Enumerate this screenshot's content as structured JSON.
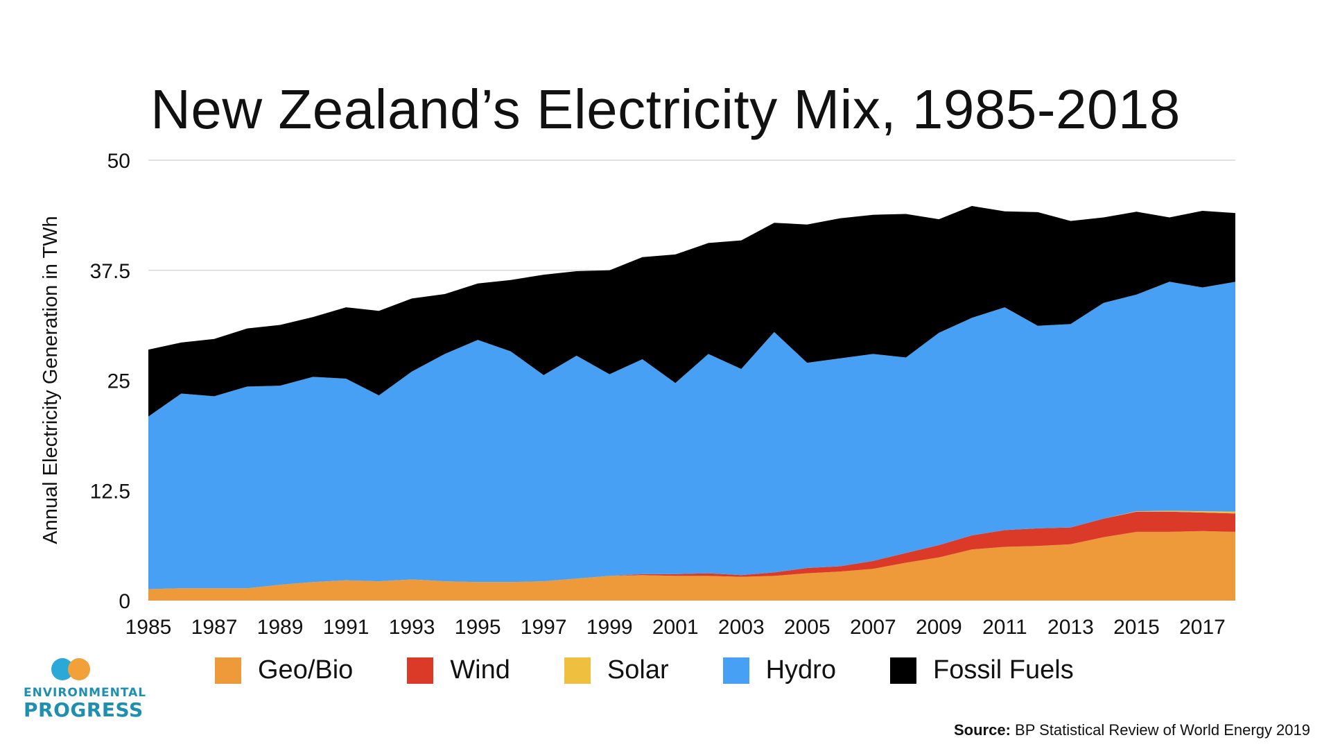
{
  "title": "New Zealand’s Electricity Mix, 1985-2018",
  "source": {
    "label": "Source:",
    "text": "BP Statistical Review of World Energy 2019"
  },
  "logo": {
    "line1": "ENVIRONMENTAL",
    "line2": "PROGRESS"
  },
  "chart_data": {
    "type": "area",
    "stacked": true,
    "ylabel": "Annual Electricity Generation in TWh",
    "ylim": [
      0,
      50
    ],
    "yticks": [
      "0",
      "12.5",
      "25",
      "37.5",
      "50"
    ],
    "ytick_values": [
      0,
      12.5,
      25,
      37.5,
      50
    ],
    "grid": true,
    "legend_position": "bottom",
    "x": [
      1985,
      1986,
      1987,
      1988,
      1989,
      1990,
      1991,
      1992,
      1993,
      1994,
      1995,
      1996,
      1997,
      1998,
      1999,
      2000,
      2001,
      2002,
      2003,
      2004,
      2005,
      2006,
      2007,
      2008,
      2009,
      2010,
      2011,
      2012,
      2013,
      2014,
      2015,
      2016,
      2017,
      2018
    ],
    "xticks": [
      "1985",
      "1987",
      "1989",
      "1991",
      "1993",
      "1995",
      "1997",
      "1999",
      "2001",
      "2003",
      "2005",
      "2007",
      "2009",
      "2011",
      "2013",
      "2015",
      "2017"
    ],
    "series": [
      {
        "name": "Geo/Bio",
        "color": "#ef9a3a",
        "values": [
          1.3,
          1.4,
          1.4,
          1.4,
          1.8,
          2.1,
          2.3,
          2.2,
          2.4,
          2.2,
          2.1,
          2.1,
          2.2,
          2.5,
          2.8,
          2.9,
          2.8,
          2.8,
          2.7,
          2.8,
          3.1,
          3.3,
          3.6,
          4.3,
          4.9,
          5.8,
          6.1,
          6.2,
          6.4,
          7.2,
          7.8,
          7.8,
          7.9,
          7.8
        ]
      },
      {
        "name": "Wind",
        "color": "#dc3a28",
        "values": [
          0,
          0,
          0,
          0,
          0,
          0,
          0,
          0,
          0,
          0,
          0,
          0,
          0,
          0,
          0,
          0.1,
          0.2,
          0.3,
          0.2,
          0.4,
          0.6,
          0.6,
          0.9,
          1.1,
          1.4,
          1.6,
          1.9,
          2.0,
          1.9,
          2.1,
          2.3,
          2.3,
          2.1,
          2.1
        ]
      },
      {
        "name": "Solar",
        "color": "#efc040",
        "values": [
          0,
          0,
          0,
          0,
          0,
          0,
          0,
          0,
          0,
          0,
          0,
          0,
          0,
          0,
          0,
          0,
          0,
          0,
          0,
          0,
          0,
          0,
          0,
          0,
          0,
          0,
          0,
          0,
          0,
          0,
          0.05,
          0.1,
          0.15,
          0.2
        ]
      },
      {
        "name": "Hydro",
        "color": "#48a0f5",
        "values": [
          19.6,
          22.1,
          21.8,
          22.9,
          22.6,
          23.3,
          22.9,
          21.1,
          23.6,
          25.8,
          27.5,
          26.2,
          23.4,
          25.3,
          22.9,
          24.4,
          21.7,
          24.9,
          23.4,
          27.3,
          23.3,
          23.6,
          23.5,
          22.2,
          24.1,
          24.7,
          25.3,
          23.0,
          23.1,
          24.5,
          24.6,
          26.0,
          25.4,
          26.1
        ]
      },
      {
        "name": "Fossil Fuels",
        "color": "#000000",
        "values": [
          7.6,
          5.8,
          6.5,
          6.6,
          6.9,
          6.8,
          8.1,
          9.6,
          8.3,
          6.8,
          6.4,
          8.1,
          11.4,
          9.6,
          11.8,
          11.6,
          14.6,
          12.6,
          14.6,
          12.4,
          15.7,
          15.9,
          15.8,
          16.3,
          12.9,
          12.7,
          10.9,
          12.9,
          11.7,
          9.7,
          9.4,
          7.3,
          8.7,
          7.8
        ]
      }
    ]
  }
}
